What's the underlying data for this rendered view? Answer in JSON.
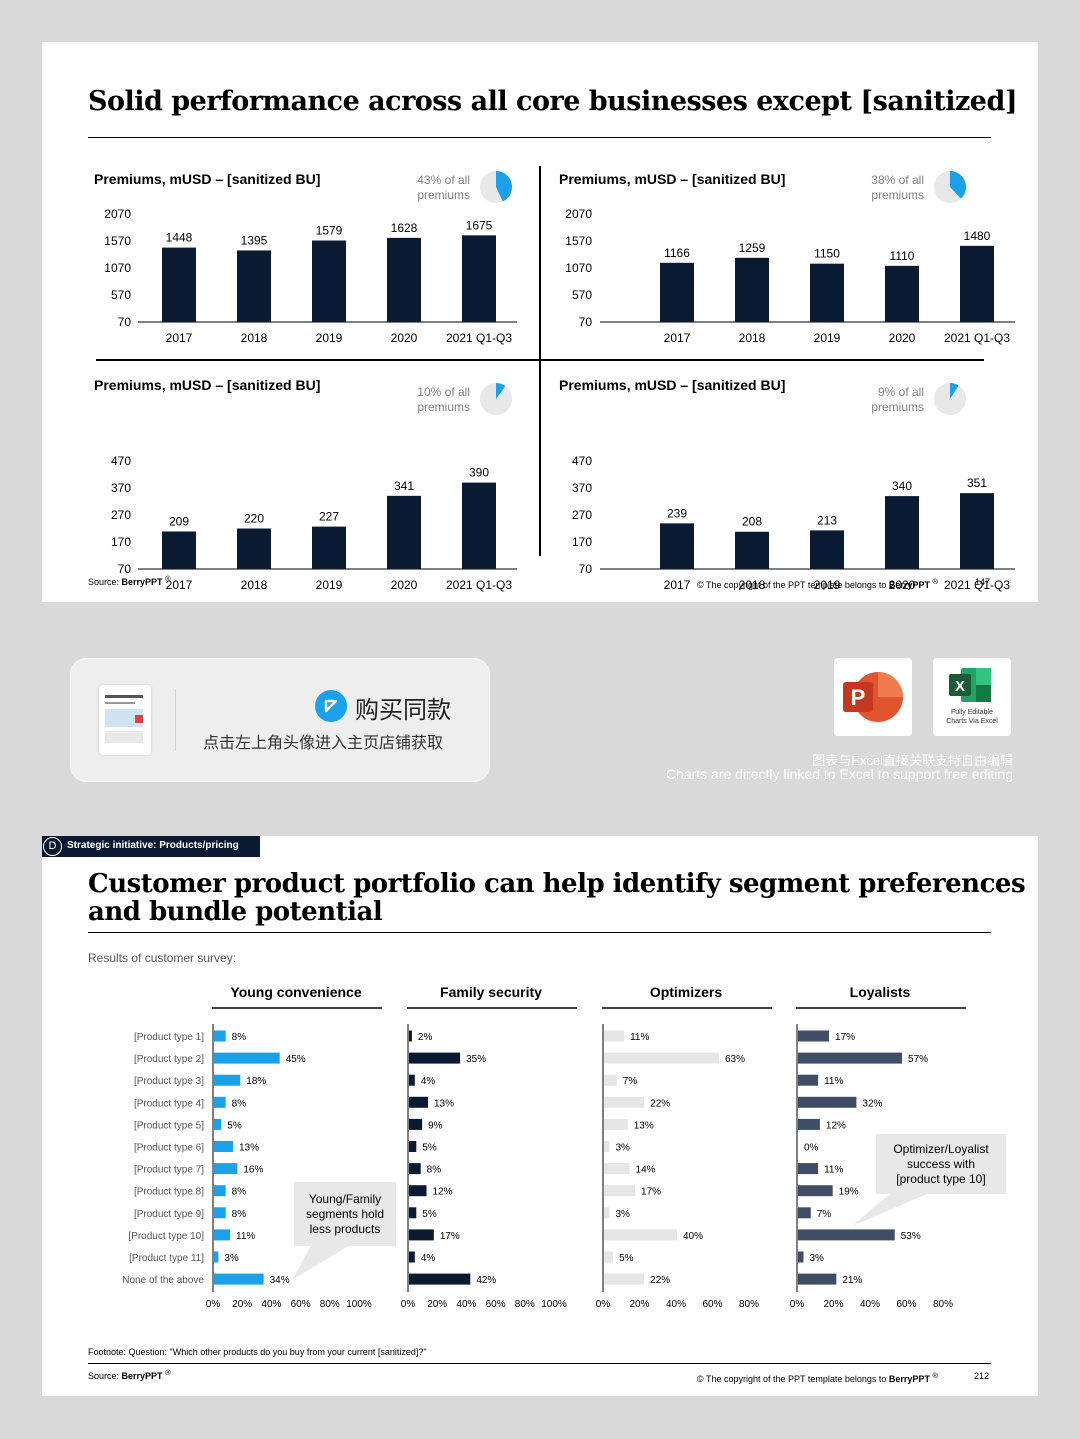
{
  "slide1": {
    "title": "Solid performance across all core businesses except [sanitized]",
    "source_label": "Source: ",
    "source_brand": "BerryPPT",
    "reg": "®",
    "copyright_prefix": "© The copyright of the PPT template belongs to ",
    "copyright_brand": "BerryPPT",
    "page": "147"
  },
  "slide2": {
    "tag_letter": "D",
    "tag_text": "Strategic initiative: Products/pricing",
    "title_line1": "Customer product portfolio can help identify segment preferences",
    "title_line2": "and bundle potential",
    "subtitle": "Results of customer survey:",
    "footnote": "Footnote: Question: \"Which other products do you buy from your current [sanitized]?\"",
    "source_label": "Source: ",
    "source_brand": "BerryPPT",
    "reg": "®",
    "copyright_prefix": "© The copyright of the PPT template belongs to ",
    "copyright_brand": "BerryPPT",
    "page": "212",
    "callout1": [
      "Young/Family",
      "segments hold",
      "less products"
    ],
    "callout2": [
      "Optimizer/Loyalist",
      "success with",
      "[product type 10]"
    ]
  },
  "banner": {
    "buy_label": "购买同款",
    "hint": "点击左上角头像进入主页店铺获取",
    "excel_icon_caption1": "Fully Editable",
    "excel_icon_caption2": "Charts Via Excel",
    "caption_cn": "图表与Excel直接关联支持自由编辑",
    "caption_en": "Charts are directly linked to Excel to support free editing",
    "ppt_icon": "powerpoint-icon",
    "excel_icon": "excel-icon",
    "arrow_icon": "arrow-up-left-icon"
  },
  "colors": {
    "navy": "#0b1a33",
    "blue": "#1ba0ea",
    "slate": "#3f4e66",
    "lightgray": "#e6e6e6",
    "pie_gray": "#e8e8e8"
  },
  "chart_data": [
    {
      "type": "bar",
      "title": "Premiums, mUSD – [sanitized BU]",
      "share_line1": "43% of all",
      "share_line2": "premiums",
      "share_pct": 43,
      "categories": [
        "2017",
        "2018",
        "2019",
        "2020",
        "2021 Q1-Q3"
      ],
      "values": [
        1448,
        1395,
        1579,
        1628,
        1675
      ],
      "yticks": [
        "2070",
        "1570",
        "1070",
        "570",
        "70"
      ],
      "ylim": [
        70,
        2070
      ]
    },
    {
      "type": "bar",
      "title": "Premiums, mUSD – [sanitized BU]",
      "share_line1": "38% of all",
      "share_line2": "premiums",
      "share_pct": 38,
      "categories": [
        "2017",
        "2018",
        "2019",
        "2020",
        "2021 Q1-Q3"
      ],
      "values": [
        1166,
        1259,
        1150,
        1110,
        1480
      ],
      "yticks": [
        "2070",
        "1570",
        "1070",
        "570",
        "70"
      ],
      "ylim": [
        70,
        2070
      ]
    },
    {
      "type": "bar",
      "title": "Premiums, mUSD – [sanitized BU]",
      "share_line1": "10% of all",
      "share_line2": "premiums",
      "share_pct": 10,
      "categories": [
        "2017",
        "2018",
        "2019",
        "2020",
        "2021 Q1-Q3"
      ],
      "values": [
        209,
        220,
        227,
        341,
        390
      ],
      "yticks": [
        "470",
        "370",
        "270",
        "170",
        "70"
      ],
      "ylim": [
        70,
        470
      ]
    },
    {
      "type": "bar",
      "title": "Premiums, mUSD – [sanitized BU]",
      "share_line1": "9% of all",
      "share_line2": "premiums",
      "share_pct": 9,
      "categories": [
        "2017",
        "2018",
        "2019",
        "2020",
        "2021 Q1-Q3"
      ],
      "values": [
        239,
        208,
        213,
        340,
        351
      ],
      "yticks": [
        "470",
        "370",
        "270",
        "170",
        "70"
      ],
      "ylim": [
        70,
        470
      ]
    },
    {
      "type": "bar",
      "orientation": "horizontal",
      "categories": [
        "[Product type 1]",
        "[Product type 2]",
        "[Product type 3]",
        "[Product type 4]",
        "[Product type 5]",
        "[Product type 6]",
        "[Product type 7]",
        "[Product type 8]",
        "[Product type 9]",
        "[Product type 10]",
        "[Product type 11]",
        "None of the above"
      ],
      "series": [
        {
          "name": "Young convenience",
          "color": "#1ba0ea",
          "values": [
            8,
            45,
            18,
            8,
            5,
            13,
            16,
            8,
            8,
            11,
            3,
            34
          ],
          "labels": [
            "8%",
            "45%",
            "18%",
            "8%",
            "5%",
            "13%",
            "16%",
            "8%",
            "8%",
            "11%",
            "3%",
            "34%"
          ],
          "xticks": [
            "0%",
            "20%",
            "40%",
            "60%",
            "80%",
            "100%"
          ],
          "xlim": [
            0,
            100
          ]
        },
        {
          "name": "Family security",
          "color": "#0b1a33",
          "values": [
            2,
            35,
            4,
            13,
            9,
            5,
            8,
            12,
            5,
            17,
            4,
            42
          ],
          "labels": [
            "2%",
            "35%",
            "4%",
            "13%",
            "9%",
            "5%",
            "8%",
            "12%",
            "5%",
            "17%",
            "4%",
            "42%"
          ],
          "xticks": [
            "0%",
            "20%",
            "40%",
            "60%",
            "80%",
            "100%"
          ],
          "xlim": [
            0,
            100
          ]
        },
        {
          "name": "Optimizers",
          "color": "#e6e6e6",
          "values": [
            11,
            63,
            7,
            22,
            13,
            3,
            14,
            17,
            3,
            40,
            5,
            22
          ],
          "labels": [
            "11%",
            "63%",
            "7%",
            "22%",
            "13%",
            "3%",
            "14%",
            "17%",
            "3%",
            "40%",
            "5%",
            "22%"
          ],
          "xticks": [
            "0%",
            "20%",
            "40%",
            "60%",
            "80%"
          ],
          "xlim": [
            0,
            80
          ]
        },
        {
          "name": "Loyalists",
          "color": "#3f4e66",
          "values": [
            17,
            57,
            11,
            32,
            12,
            0,
            11,
            19,
            7,
            53,
            3,
            21
          ],
          "labels": [
            "17%",
            "57%",
            "11%",
            "32%",
            "12%",
            "0%",
            "11%",
            "19%",
            "7%",
            "53%",
            "3%",
            "21%"
          ],
          "xticks": [
            "0%",
            "20%",
            "40%",
            "60%",
            "80%"
          ],
          "xlim": [
            0,
            80
          ]
        }
      ]
    }
  ]
}
